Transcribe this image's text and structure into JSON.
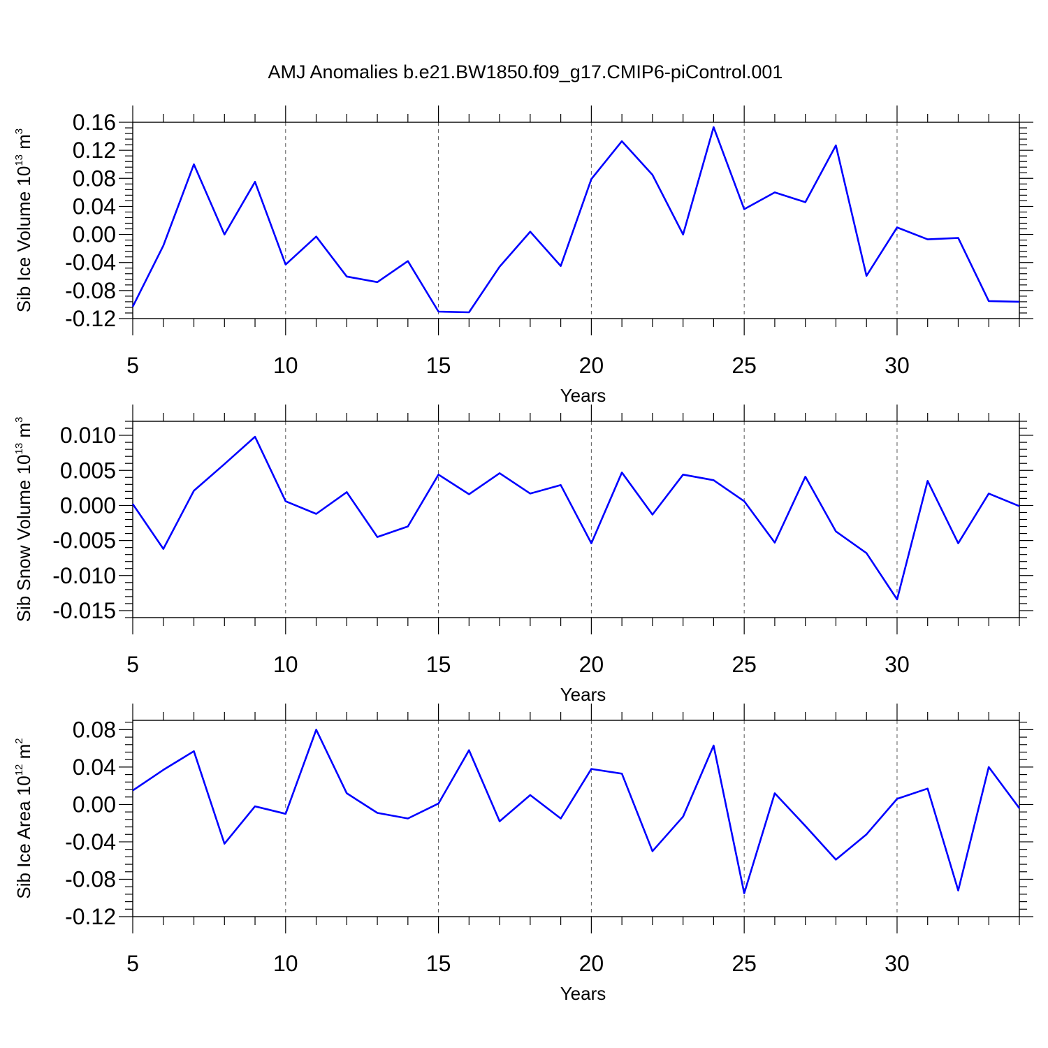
{
  "figure_title": "AMJ Anomalies b.e21.BW1850.f09_g17.CMIP6-piControl.001",
  "colors": {
    "line": "#0000ff",
    "axes": "#000000",
    "grid": "#555555"
  },
  "chart_data": [
    {
      "type": "line",
      "xlabel": "Years",
      "ylabel": {
        "text": "Sib Ice Volume 10",
        "exp1": "13",
        "mid": " m",
        "exp2": "3"
      },
      "xlim": [
        5,
        34
      ],
      "ylim": [
        -0.12,
        0.16
      ],
      "x_ticks": [
        "5",
        "10",
        "15",
        "20",
        "25",
        "30"
      ],
      "y_ticks": [
        "-0.12",
        "-0.08",
        "-0.04",
        "0.00",
        "0.04",
        "0.08",
        "0.12",
        "0.16"
      ],
      "grid": "vertical dashed at major x ticks",
      "x": [
        5,
        6,
        7,
        8,
        9,
        10,
        11,
        12,
        13,
        14,
        15,
        16,
        17,
        18,
        19,
        20,
        21,
        22,
        23,
        24,
        25,
        26,
        27,
        28,
        29,
        30,
        31,
        32,
        33,
        34
      ],
      "series": [
        {
          "values": [
            -0.103,
            -0.016,
            0.1,
            0.0,
            0.075,
            -0.043,
            -0.003,
            -0.06,
            -0.068,
            -0.038,
            -0.11,
            -0.111,
            -0.046,
            0.004,
            -0.045,
            0.079,
            0.133,
            0.085,
            0.0,
            0.153,
            0.036,
            0.06,
            0.046,
            0.127,
            -0.059,
            0.01,
            -0.007,
            -0.005,
            -0.095,
            -0.096
          ]
        }
      ]
    },
    {
      "type": "line",
      "xlabel": "Years",
      "ylabel": {
        "text": "Sib Snow Volume 10",
        "exp1": "13",
        "mid": " m",
        "exp2": "3"
      },
      "xlim": [
        5,
        34
      ],
      "ylim": [
        -0.016,
        0.012
      ],
      "x_ticks": [
        "5",
        "10",
        "15",
        "20",
        "25",
        "30"
      ],
      "y_ticks": [
        "-0.015",
        "-0.010",
        "-0.005",
        "0.000",
        "0.005",
        "0.010"
      ],
      "grid": "vertical dashed at major x ticks",
      "x": [
        5,
        6,
        7,
        8,
        9,
        10,
        11,
        12,
        13,
        14,
        15,
        16,
        17,
        18,
        19,
        20,
        21,
        22,
        23,
        24,
        25,
        26,
        27,
        28,
        29,
        30,
        31,
        32,
        33,
        34
      ],
      "series": [
        {
          "values": [
            0.0002,
            -0.0062,
            0.0021,
            0.0059,
            0.0098,
            0.0006,
            -0.0012,
            0.0019,
            -0.0045,
            -0.003,
            0.0044,
            0.0016,
            0.0046,
            0.0017,
            0.0029,
            -0.0054,
            0.0047,
            -0.0013,
            0.0044,
            0.0036,
            0.0006,
            -0.0053,
            0.0041,
            -0.0037,
            -0.0068,
            -0.0134,
            0.0035,
            -0.0054,
            0.0017,
            -0.0001
          ]
        }
      ]
    },
    {
      "type": "line",
      "xlabel": "Years",
      "ylabel": {
        "text": "Sib Ice Area 10",
        "exp1": "12",
        "mid": " m",
        "exp2": "2"
      },
      "xlim": [
        5,
        34
      ],
      "ylim": [
        -0.12,
        0.09
      ],
      "x_ticks": [
        "5",
        "10",
        "15",
        "20",
        "25",
        "30"
      ],
      "y_ticks": [
        "-0.12",
        "-0.08",
        "-0.04",
        "0.00",
        "0.04",
        "0.08"
      ],
      "grid": "vertical dashed at major x ticks",
      "x": [
        5,
        6,
        7,
        8,
        9,
        10,
        11,
        12,
        13,
        14,
        15,
        16,
        17,
        18,
        19,
        20,
        21,
        22,
        23,
        24,
        25,
        26,
        27,
        28,
        29,
        30,
        31,
        32,
        33,
        34
      ],
      "series": [
        {
          "values": [
            0.015,
            0.037,
            0.057,
            -0.042,
            -0.002,
            -0.01,
            0.08,
            0.012,
            -0.009,
            -0.015,
            0.001,
            0.058,
            -0.018,
            0.01,
            -0.015,
            0.038,
            0.033,
            -0.05,
            -0.013,
            0.063,
            -0.095,
            0.012,
            -0.023,
            -0.059,
            -0.032,
            0.006,
            0.017,
            -0.092,
            0.04,
            -0.004
          ]
        }
      ]
    }
  ]
}
